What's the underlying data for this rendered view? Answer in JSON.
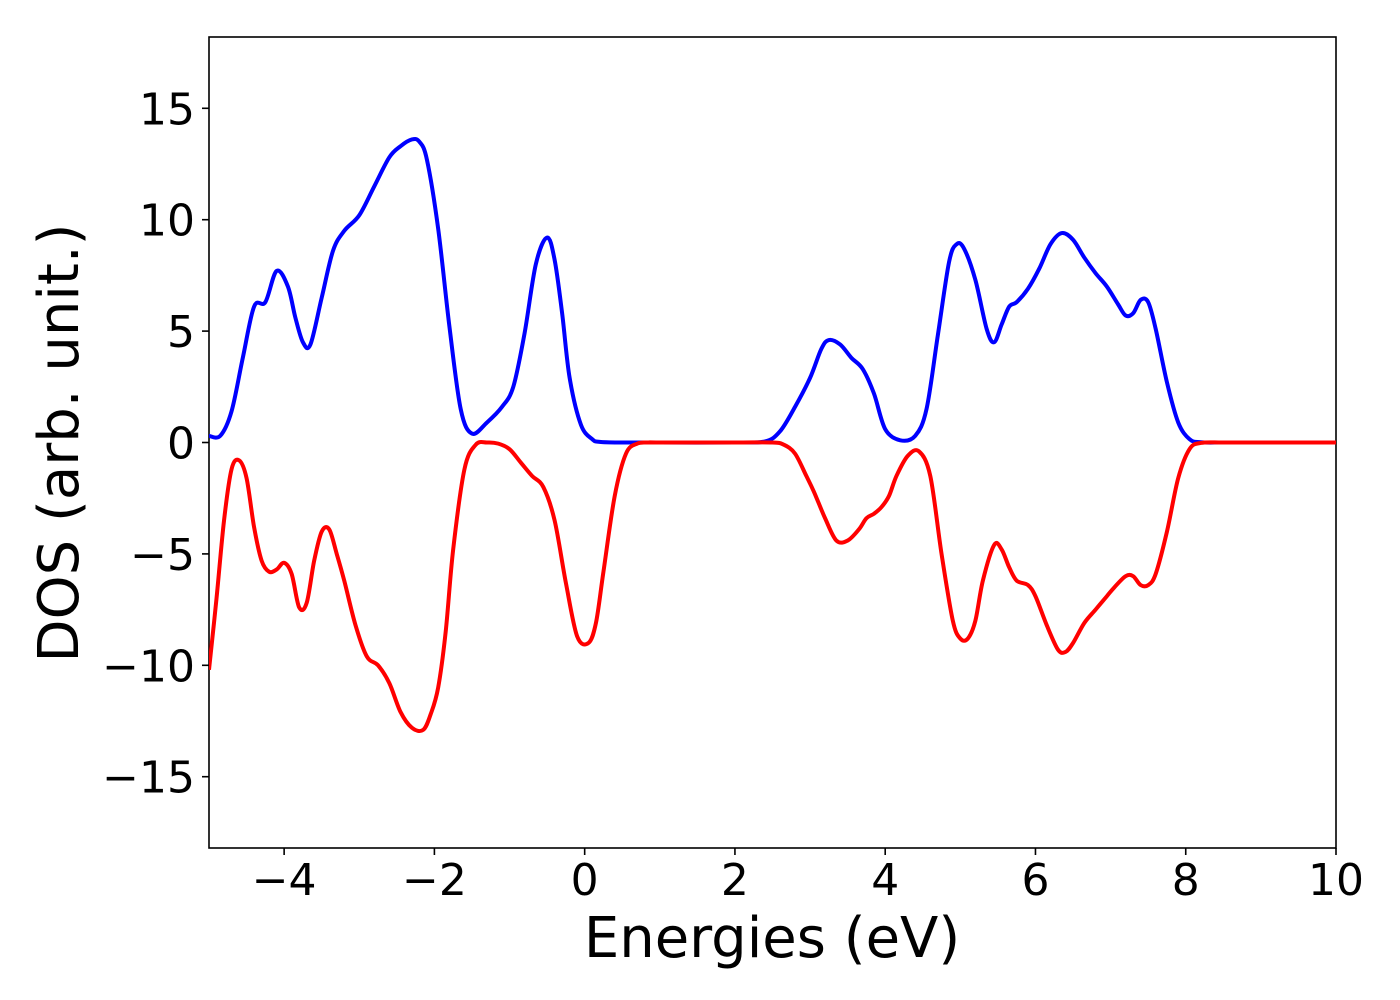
{
  "chart_data": {
    "type": "line",
    "title": "",
    "xlabel": "Energies (eV)",
    "ylabel": "DOS (arb. unit.)",
    "xlim": [
      -5,
      10
    ],
    "ylim": [
      -18.2,
      18.2
    ],
    "grid": false,
    "legend": "none",
    "x_ticks": [
      -4,
      -2,
      0,
      2,
      4,
      6,
      8,
      10
    ],
    "x_tick_labels": [
      "−4",
      "−2",
      "0",
      "2",
      "4",
      "6",
      "8",
      "10"
    ],
    "y_ticks": [
      15,
      10,
      5,
      0,
      -5,
      -10,
      -15
    ],
    "y_tick_labels": [
      "15",
      "10",
      "5",
      "0",
      "−5",
      "−10",
      "−15"
    ],
    "series": [
      {
        "color": "#0000ff",
        "x": [
          -5.0,
          -4.85,
          -4.7,
          -4.55,
          -4.4,
          -4.25,
          -4.1,
          -3.95,
          -3.85,
          -3.75,
          -3.65,
          -3.5,
          -3.35,
          -3.2,
          -3.0,
          -2.8,
          -2.6,
          -2.45,
          -2.3,
          -2.2,
          -2.1,
          -1.95,
          -1.8,
          -1.65,
          -1.5,
          -1.3,
          -1.1,
          -0.95,
          -0.8,
          -0.65,
          -0.5,
          -0.4,
          -0.3,
          -0.2,
          -0.05,
          0.1,
          0.2,
          0.5,
          1.0,
          2.0,
          2.4,
          2.6,
          2.8,
          3.0,
          3.15,
          3.25,
          3.4,
          3.55,
          3.7,
          3.85,
          4.0,
          4.2,
          4.4,
          4.55,
          4.7,
          4.85,
          4.95,
          5.05,
          5.2,
          5.35,
          5.45,
          5.55,
          5.65,
          5.75,
          5.9,
          6.05,
          6.2,
          6.35,
          6.5,
          6.65,
          6.8,
          6.95,
          7.1,
          7.2,
          7.3,
          7.4,
          7.5,
          7.6,
          7.75,
          7.9,
          8.05,
          8.2,
          8.5,
          9.0,
          10.0
        ],
        "values": [
          0.3,
          0.3,
          1.4,
          3.8,
          6.1,
          6.3,
          7.7,
          7.0,
          5.6,
          4.5,
          4.4,
          6.5,
          8.6,
          9.5,
          10.2,
          11.5,
          12.8,
          13.3,
          13.6,
          13.5,
          12.7,
          9.6,
          5.2,
          1.5,
          0.4,
          0.9,
          1.6,
          2.5,
          4.9,
          8.0,
          9.2,
          8.2,
          5.8,
          2.9,
          0.8,
          0.15,
          0.03,
          0.0,
          0.0,
          0.0,
          0.05,
          0.5,
          1.6,
          2.9,
          4.2,
          4.6,
          4.4,
          3.8,
          3.3,
          2.2,
          0.6,
          0.1,
          0.3,
          1.5,
          4.8,
          8.1,
          8.9,
          8.7,
          7.3,
          5.1,
          4.5,
          5.3,
          6.1,
          6.3,
          6.9,
          7.8,
          8.9,
          9.4,
          9.1,
          8.3,
          7.6,
          7.0,
          6.2,
          5.7,
          5.8,
          6.4,
          6.3,
          5.1,
          2.7,
          0.9,
          0.15,
          0.01,
          0.0,
          0.0,
          0.0
        ]
      },
      {
        "color": "#ff0000",
        "x": [
          -5.0,
          -4.9,
          -4.8,
          -4.7,
          -4.6,
          -4.5,
          -4.4,
          -4.3,
          -4.2,
          -4.1,
          -4.0,
          -3.9,
          -3.8,
          -3.7,
          -3.6,
          -3.5,
          -3.4,
          -3.3,
          -3.2,
          -3.05,
          -2.9,
          -2.75,
          -2.6,
          -2.45,
          -2.3,
          -2.15,
          -2.05,
          -1.95,
          -1.85,
          -1.75,
          -1.6,
          -1.45,
          -1.3,
          -1.15,
          -1.0,
          -0.85,
          -0.7,
          -0.55,
          -0.4,
          -0.25,
          -0.1,
          0.05,
          0.15,
          0.25,
          0.4,
          0.55,
          0.7,
          0.85,
          1.0,
          2.0,
          2.5,
          2.65,
          2.8,
          2.95,
          3.05,
          3.2,
          3.35,
          3.5,
          3.65,
          3.75,
          3.85,
          3.95,
          4.05,
          4.15,
          4.3,
          4.45,
          4.6,
          4.75,
          4.9,
          5.0,
          5.1,
          5.2,
          5.3,
          5.45,
          5.55,
          5.65,
          5.75,
          5.9,
          6.0,
          6.15,
          6.3,
          6.4,
          6.5,
          6.65,
          6.8,
          6.95,
          7.05,
          7.2,
          7.3,
          7.4,
          7.5,
          7.6,
          7.75,
          7.9,
          8.05,
          8.2,
          8.5,
          9.0,
          10.0
        ],
        "values": [
          -10.2,
          -7.0,
          -3.5,
          -1.2,
          -0.8,
          -1.6,
          -3.8,
          -5.3,
          -5.8,
          -5.7,
          -5.4,
          -5.9,
          -7.4,
          -7.2,
          -5.3,
          -4.0,
          -3.9,
          -5.0,
          -6.2,
          -8.2,
          -9.6,
          -10.0,
          -10.8,
          -12.1,
          -12.8,
          -12.9,
          -12.2,
          -11.0,
          -8.5,
          -4.8,
          -1.2,
          -0.1,
          0.0,
          -0.05,
          -0.3,
          -0.9,
          -1.5,
          -2.0,
          -3.5,
          -6.3,
          -8.7,
          -9.0,
          -8.1,
          -5.8,
          -2.4,
          -0.5,
          -0.05,
          0.0,
          0.0,
          0.0,
          0.0,
          -0.1,
          -0.5,
          -1.5,
          -2.2,
          -3.4,
          -4.4,
          -4.4,
          -3.9,
          -3.4,
          -3.2,
          -2.9,
          -2.4,
          -1.5,
          -0.6,
          -0.4,
          -1.5,
          -5.0,
          -8.0,
          -8.8,
          -8.8,
          -8.0,
          -6.2,
          -4.6,
          -4.8,
          -5.6,
          -6.2,
          -6.4,
          -6.9,
          -8.2,
          -9.3,
          -9.4,
          -9.0,
          -8.1,
          -7.5,
          -6.9,
          -6.5,
          -6.0,
          -6.0,
          -6.4,
          -6.4,
          -5.9,
          -4.0,
          -1.6,
          -0.3,
          -0.02,
          0.0,
          0.0,
          0.0
        ]
      }
    ]
  }
}
